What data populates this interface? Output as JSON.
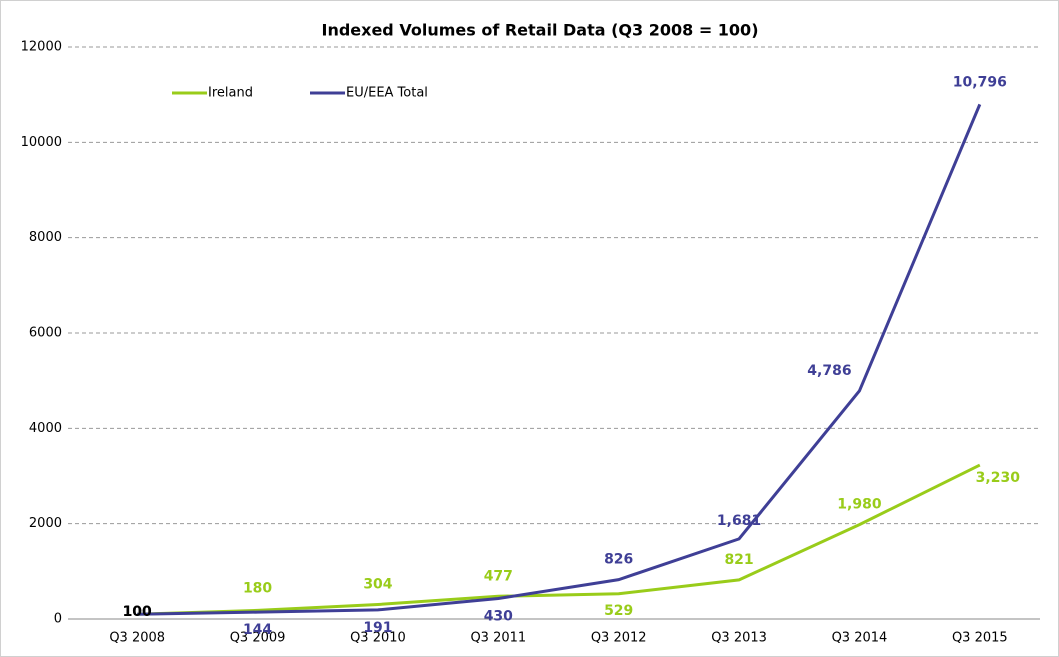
{
  "chart_data": {
    "type": "line",
    "title": "Indexed Volumes of Retail Data (Q3 2008 = 100)",
    "categories": [
      "Q3 2008",
      "Q3 2009",
      "Q3 2010",
      "Q3 2011",
      "Q3 2012",
      "Q3 2013",
      "Q3 2014",
      "Q3 2015"
    ],
    "series": [
      {
        "name": "Ireland",
        "color": "#99cc1a",
        "values": [
          100,
          180,
          304,
          477,
          529,
          821,
          1980,
          3230
        ],
        "value_labels": [
          "100",
          "180",
          "304",
          "477",
          "529",
          "821",
          "1,980",
          "3,230"
        ]
      },
      {
        "name": "EU/EEA  Total",
        "color": "#3f3f96",
        "values": [
          100,
          144,
          191,
          430,
          826,
          1681,
          4786,
          10796
        ],
        "value_labels": [
          "100",
          "144",
          "191",
          "430",
          "826",
          "1,681",
          "4,786",
          "10,796"
        ]
      }
    ],
    "ylim": [
      0,
      12000
    ],
    "yticks": [
      0,
      2000,
      4000,
      6000,
      8000,
      10000,
      12000
    ],
    "grid": true
  }
}
